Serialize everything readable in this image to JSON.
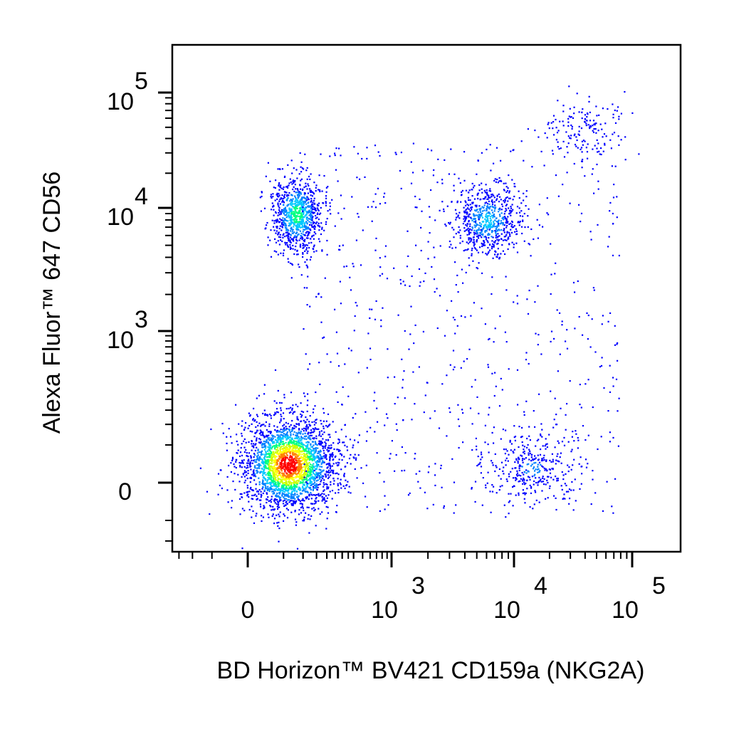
{
  "chart_data": {
    "type": "scatter",
    "subtype": "flow-cytometry-density-dot-plot",
    "xlabel": "BD Horizon™ BV421 CD159a (NKG2A)",
    "ylabel": "Alexa Fluor™ 647 CD56",
    "x_scale": "biexponential",
    "y_scale": "biexponential",
    "x_ticks": [
      {
        "base": "0",
        "exp": "",
        "value": 0
      },
      {
        "base": "10",
        "exp": "3",
        "value": 1000
      },
      {
        "base": "10",
        "exp": "4",
        "value": 10000
      },
      {
        "base": "10",
        "exp": "5",
        "value": 100000
      }
    ],
    "y_ticks": [
      {
        "base": "0",
        "exp": "",
        "value": 0
      },
      {
        "base": "10",
        "exp": "3",
        "value": 1000
      },
      {
        "base": "10",
        "exp": "4",
        "value": 10000
      },
      {
        "base": "10",
        "exp": "5",
        "value": 100000
      }
    ],
    "colormap": [
      "#0000ff",
      "#0080ff",
      "#00c8ff",
      "#00ff80",
      "#c8ff00",
      "#ffff00",
      "#ff8000",
      "#ff0000"
    ],
    "populations": [
      {
        "x": 60,
        "y": 20,
        "spread_x": 0.55,
        "spread_y": 0.55,
        "count": 2600,
        "peak_density": 1.0
      },
      {
        "x": 80,
        "y": 9000,
        "spread_x": 0.3,
        "spread_y": 0.45,
        "count": 900,
        "peak_density": 0.45
      },
      {
        "x": 6000,
        "y": 8000,
        "spread_x": 0.4,
        "spread_y": 0.4,
        "count": 650,
        "peak_density": 0.3
      },
      {
        "x": 14000,
        "y": 15,
        "spread_x": 0.55,
        "spread_y": 0.4,
        "count": 320,
        "peak_density": 0.15
      },
      {
        "x": 40000,
        "y": 50000,
        "spread_x": 0.5,
        "spread_y": 0.35,
        "count": 160,
        "peak_density": 0.1
      }
    ],
    "grid": false,
    "legend": "none"
  }
}
